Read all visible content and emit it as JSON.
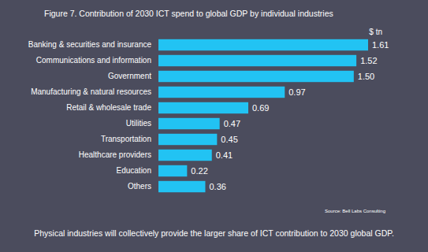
{
  "chart_data": {
    "type": "bar",
    "orientation": "horizontal",
    "title": "Figure 7. Contribution of 2030 ICT spend to global GDP by individual industries",
    "xlabel": "$ tn",
    "categories": [
      "Banking & securities and insurance",
      "Communications and information",
      "Government",
      "Manufacturing & natural resources",
      "Retail & wholesale trade",
      "Utilities",
      "Transportation",
      "Healthcare providers",
      "Education",
      "Others"
    ],
    "values": [
      1.61,
      1.52,
      1.5,
      0.97,
      0.69,
      0.47,
      0.45,
      0.41,
      0.22,
      0.36
    ],
    "value_labels": [
      "1.61",
      "1.52",
      "1.50",
      "0.97",
      "0.69",
      "0.47",
      "0.45",
      "0.41",
      "0.22",
      "0.36"
    ],
    "color": "#22c3f3",
    "xlim": [
      0,
      1.61
    ],
    "data_labels": true,
    "tick_labels": "y",
    "source": "Source: Bell Labs Consulting",
    "caption": "Physical industries will collectively provide the larger share of ICT contribution to 2030 global GDP."
  }
}
